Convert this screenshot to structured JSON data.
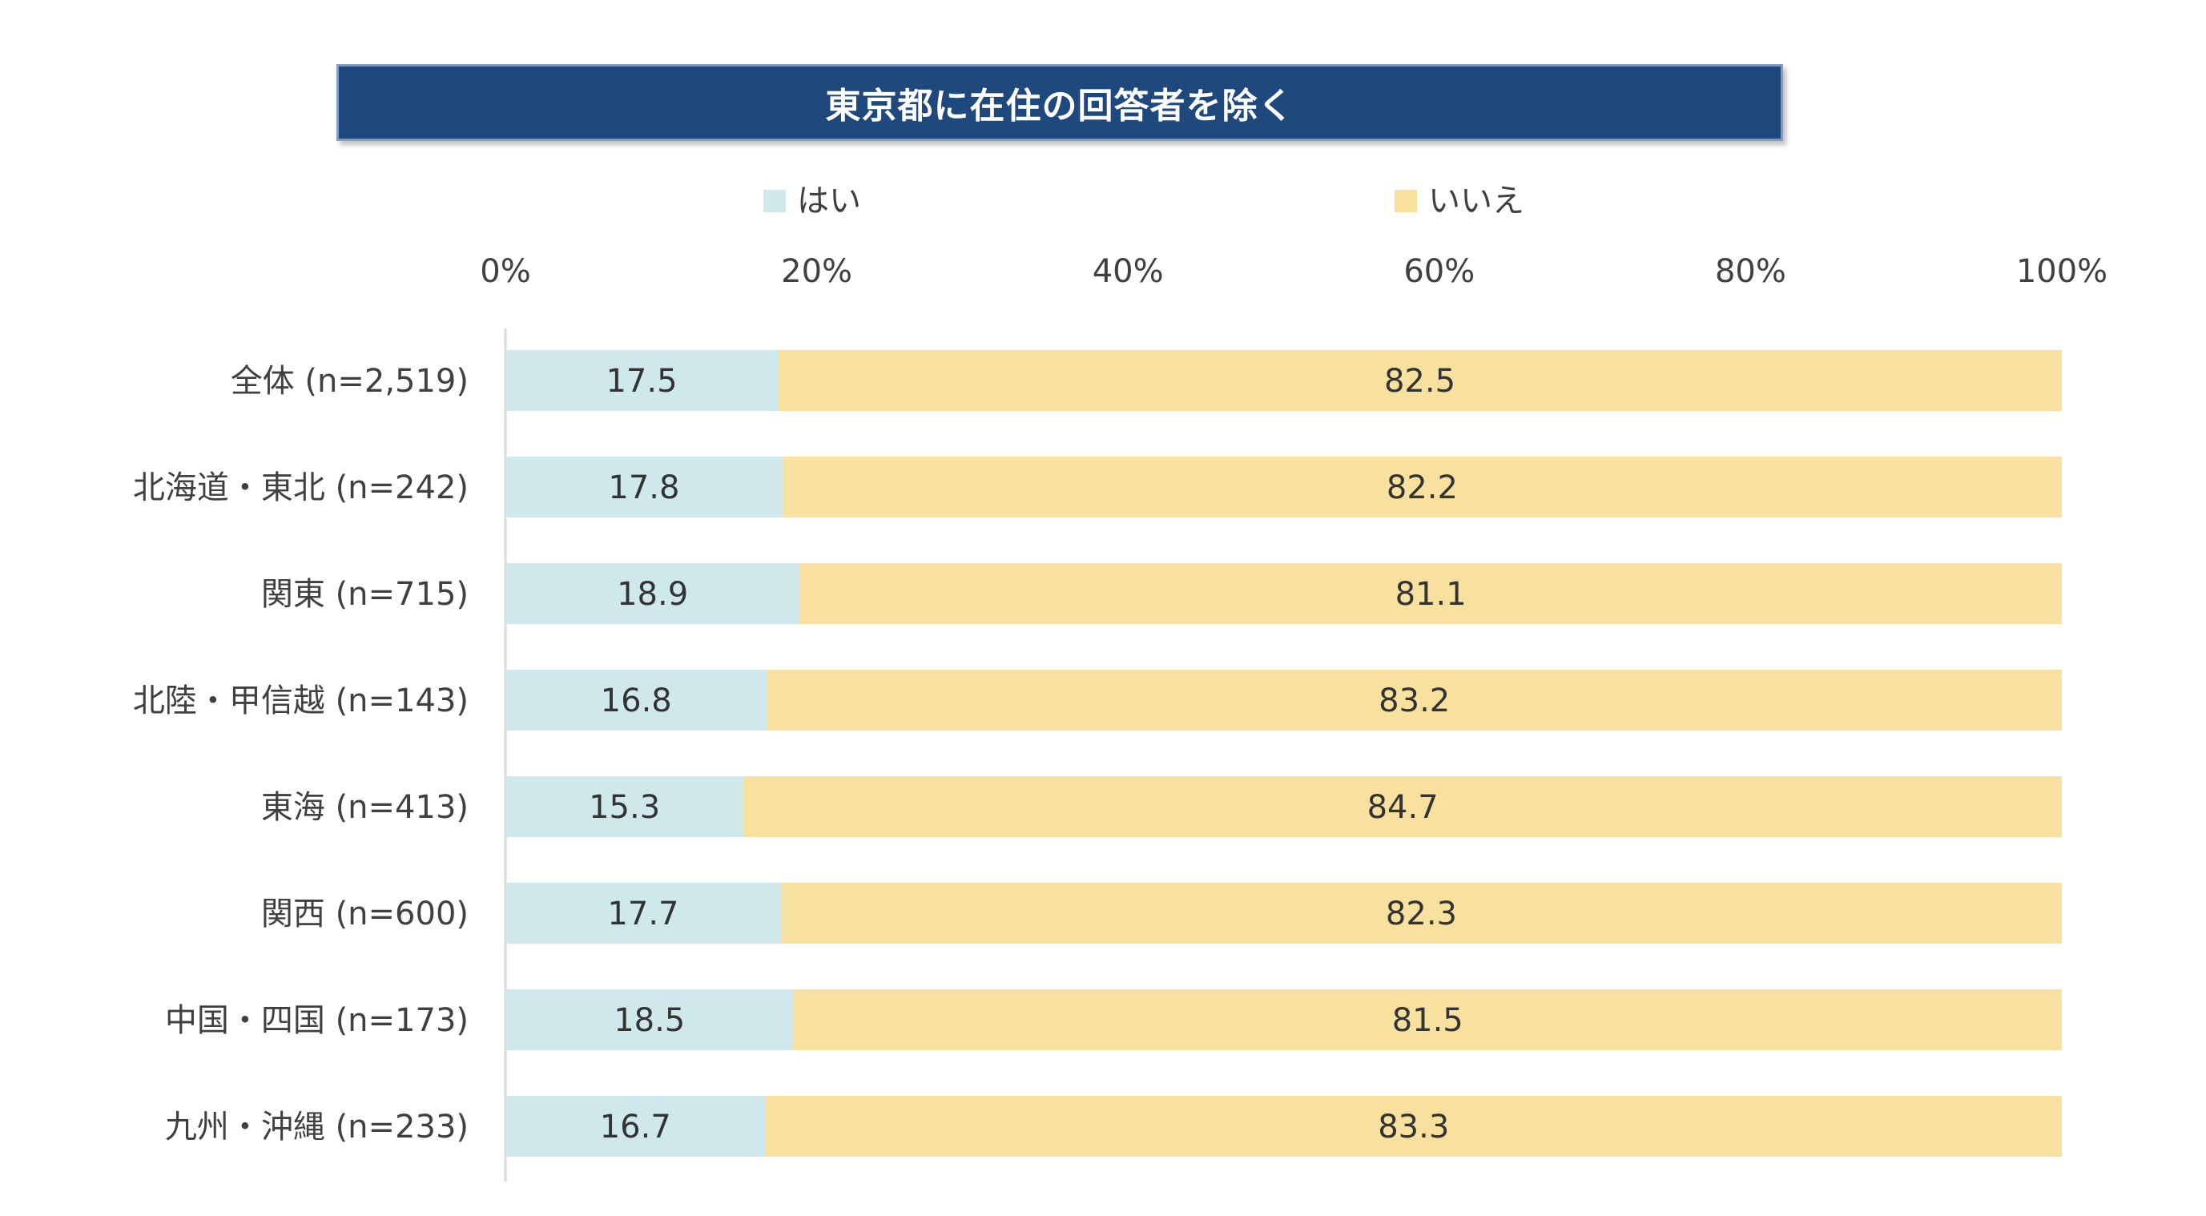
{
  "title": "東京都に在住の回答者を除く",
  "colors": {
    "title_bg": "#1f497d",
    "yes": "#cfe8ec",
    "no": "#f8e19e",
    "axis_text": "#404040",
    "axis_line": "#d9d9d9"
  },
  "legend": {
    "yes_label": "はい",
    "no_label": "いいえ"
  },
  "chart_data": {
    "type": "bar",
    "orientation": "horizontal",
    "stacked": true,
    "percent_stacked": true,
    "title": "東京都に在住の回答者を除く",
    "categories": [
      "全体 (n=2,519)",
      "北海道・東北 (n=242)",
      "関東 (n=715)",
      "北陸・甲信越 (n=143)",
      "東海 (n=413)",
      "関西 (n=600)",
      "中国・四国 (n=173)",
      "九州・沖縄 (n=233)"
    ],
    "series": [
      {
        "name": "はい",
        "values": [
          17.5,
          17.8,
          18.9,
          16.8,
          15.3,
          17.7,
          18.5,
          16.7
        ],
        "labels": [
          "17.5",
          "17.8",
          "18.9",
          "16.8",
          "15.3",
          "17.7",
          "18.5",
          "16.7"
        ]
      },
      {
        "name": "いいえ",
        "values": [
          82.5,
          82.2,
          81.1,
          83.2,
          84.7,
          82.3,
          81.5,
          83.3
        ],
        "labels": [
          "82.5",
          "82.2",
          "81.1",
          "83.2",
          "84.7",
          "82.3",
          "81.5",
          "83.3"
        ]
      }
    ],
    "xlim": [
      0,
      100
    ],
    "x_ticks": [
      0,
      20,
      40,
      60,
      80,
      100
    ],
    "x_tick_labels": [
      "0%",
      "20%",
      "40%",
      "60%",
      "80%",
      "100%"
    ],
    "xlabel": "",
    "ylabel": "",
    "grid": false,
    "legend_position": "top"
  }
}
